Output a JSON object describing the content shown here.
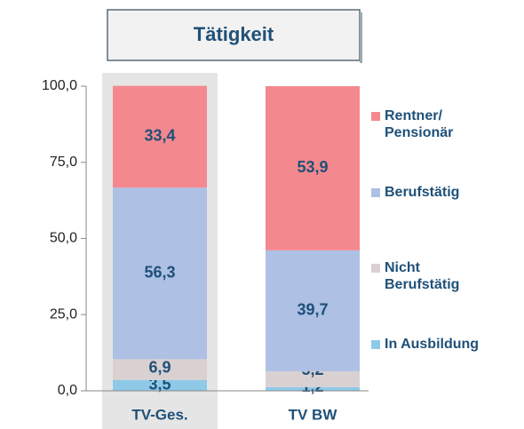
{
  "chart_data": {
    "type": "stacked_bar",
    "title": "Tätigkeit",
    "categories": [
      "TV-Ges.",
      "TV BW"
    ],
    "series": [
      {
        "name": "In Ausbildung",
        "color": "#8ecae8",
        "values": [
          3.5,
          1.2
        ],
        "value_labels": [
          "3,5",
          "1,2"
        ]
      },
      {
        "name": "Nicht Berufstätig",
        "color": "#d9d0d2",
        "values": [
          6.9,
          5.2
        ],
        "value_labels": [
          "6,9",
          "5,2"
        ]
      },
      {
        "name": "Berufstätig",
        "color": "#aec0e4",
        "values": [
          56.3,
          39.7
        ],
        "value_labels": [
          "56,3",
          "39,7"
        ]
      },
      {
        "name": "Rentner/ Pensionär",
        "color": "#f4888f",
        "values": [
          33.4,
          53.9
        ],
        "value_labels": [
          "33,4",
          "53,9"
        ]
      }
    ],
    "ylim": [
      0,
      100
    ],
    "yticks": [
      {
        "value": 0,
        "label": "0,0"
      },
      {
        "value": 25,
        "label": "25,0"
      },
      {
        "value": 50,
        "label": "50,0"
      },
      {
        "value": 75,
        "label": "75,0"
      },
      {
        "value": 100,
        "label": "100,0"
      }
    ],
    "legend": "right"
  }
}
